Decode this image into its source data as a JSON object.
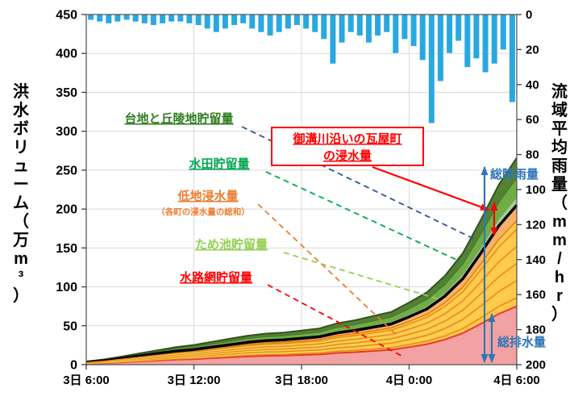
{
  "axes": {
    "left": {
      "title": "洪水ボリューム（万m³）",
      "max": 450,
      "ticks": [
        0,
        50,
        100,
        150,
        200,
        250,
        300,
        350,
        400,
        450
      ]
    },
    "right": {
      "title": "流域平均雨量（mm/hr）",
      "max": 200,
      "ticks": [
        0,
        20,
        40,
        60,
        80,
        100,
        120,
        140,
        160,
        180,
        200
      ]
    },
    "x": {
      "labels": [
        "3日 6:00",
        "3日 12:00",
        "3日 18:00",
        "4日 0:00",
        "4日 6:00"
      ]
    }
  },
  "chart_data": {
    "type": "area",
    "title": "",
    "x_hours": [
      0,
      1,
      2,
      3,
      4,
      5,
      6,
      7,
      8,
      9,
      10,
      11,
      12,
      13,
      14,
      15,
      16,
      17,
      18,
      19,
      20,
      21,
      22,
      23,
      24
    ],
    "x_start_label": "3日 6:00",
    "x_end_label": "4日 6:00",
    "stack_series_note": "values are cumulative stack tops in 万m³, listed top layer first",
    "stack_series": [
      {
        "id": "upland",
        "label": "台地と丘陵地貯留量",
        "color": "#538135",
        "edge": "#33521e",
        "edge_w": 2,
        "values": [
          4.0,
          6.7,
          10.6,
          14.6,
          18.6,
          22.6,
          25.3,
          29.3,
          33.3,
          37.2,
          39.9,
          41.2,
          43.9,
          46.6,
          53.2,
          57.2,
          62.5,
          67.8,
          79.8,
          93.1,
          114.4,
          143.6,
          186.2,
          231.4,
          266
        ]
      },
      {
        "id": "paddy",
        "label": "水田貯留量",
        "color": "#70ad47",
        "edge": "#4e7a2b",
        "edge_w": 1.5,
        "values": [
          3.6,
          6.0,
          9.6,
          13.2,
          16.8,
          20.4,
          22.8,
          26.4,
          30.0,
          33.6,
          36.0,
          37.2,
          39.6,
          42.0,
          48.0,
          51.6,
          56.4,
          61.2,
          72.0,
          84.0,
          103.2,
          129.6,
          168.0,
          208.8,
          240
        ]
      },
      {
        "id": "pond",
        "label": "ため池貯留量",
        "color": "#a9d18e",
        "edge": "#7aa85a",
        "edge_w": 1.2,
        "values": [
          3.2,
          5.4,
          8.6,
          11.8,
          15.1,
          18.3,
          20.4,
          23.7,
          26.9,
          30.1,
          32.3,
          33.3,
          35.5,
          37.6,
          43.0,
          46.2,
          50.5,
          54.8,
          64.5,
          75.3,
          92.5,
          116.1,
          150.5,
          187.1,
          215
        ]
      },
      {
        "id": "kawaracho",
        "label": "御溝川沿いの瓦屋町の浸水量",
        "color": "#f6b26b",
        "edge": "#000000",
        "edge_w": 3.5,
        "values": [
          3.1,
          5.1,
          8.2,
          11.3,
          14.4,
          17.4,
          19.5,
          22.6,
          25.6,
          28.7,
          30.8,
          31.8,
          33.8,
          35.9,
          41.0,
          44.1,
          48.2,
          52.3,
          61.5,
          71.8,
          88.2,
          110.7,
          143.5,
          178.4,
          205
        ]
      },
      {
        "id": "lowland",
        "label": "低地浸水量（各町の浸水量の総和）",
        "color": "#ffc94a",
        "edge": "#e07b10",
        "edge_w": 1.5,
        "values": [
          2.8,
          4.6,
          7.4,
          10.2,
          13.0,
          15.7,
          17.6,
          20.4,
          23.1,
          25.9,
          27.8,
          28.7,
          30.5,
          32.4,
          37.0,
          39.8,
          43.5,
          47.2,
          55.5,
          64.8,
          79.6,
          99.9,
          129.5,
          161.0,
          185
        ]
      },
      {
        "id": "channel",
        "label": "水路網貯留量",
        "color": "#f2a2a2",
        "edge": "#e8392b",
        "edge_w": 2,
        "values": [
          1.1,
          1.9,
          3.0,
          4.1,
          5.3,
          6.4,
          7.1,
          8.3,
          9.4,
          10.5,
          11.3,
          11.6,
          12.4,
          13.1,
          15.0,
          16.1,
          17.6,
          19.1,
          22.5,
          26.3,
          32.3,
          40.5,
          52.5,
          65.3,
          75
        ]
      }
    ],
    "rain": {
      "label": "流域平均雨量",
      "unit": "mm/hr",
      "interval_hours": 0.5,
      "color": "#29a8e0",
      "values": [
        3,
        4,
        5,
        4,
        3,
        4,
        5,
        6,
        5,
        4,
        4,
        5,
        6,
        8,
        10,
        8,
        6,
        5,
        8,
        10,
        12,
        10,
        8,
        6,
        8,
        10,
        14,
        28,
        16,
        10,
        12,
        16,
        12,
        10,
        22,
        14,
        18,
        26,
        62,
        38,
        22,
        15,
        30,
        25,
        33,
        28,
        20,
        50
      ]
    }
  },
  "annotations": {
    "upland": {
      "text": "台地と丘陵地貯留量",
      "color": "#2e7d1e",
      "leader_color": "#2f5496"
    },
    "paddy": {
      "text": "水田貯留量",
      "color": "#00a850"
    },
    "lowland": {
      "text": "低地浸水量",
      "sub": "（各町の浸水量の総和）",
      "color": "#ed7d31"
    },
    "pond": {
      "text": "ため池貯留量",
      "color": "#92d050"
    },
    "channel": {
      "text": "水路網貯留量",
      "color": "#ff0000"
    },
    "kawaracho": {
      "line1": "御溝川沿いの瓦屋町",
      "line2": "の浸水量",
      "color": "#ff0000"
    },
    "total_rain": {
      "text": "総降雨量",
      "color": "#2e75b6"
    },
    "total_drain": {
      "text": "総排水量",
      "color": "#2e75b6"
    }
  }
}
